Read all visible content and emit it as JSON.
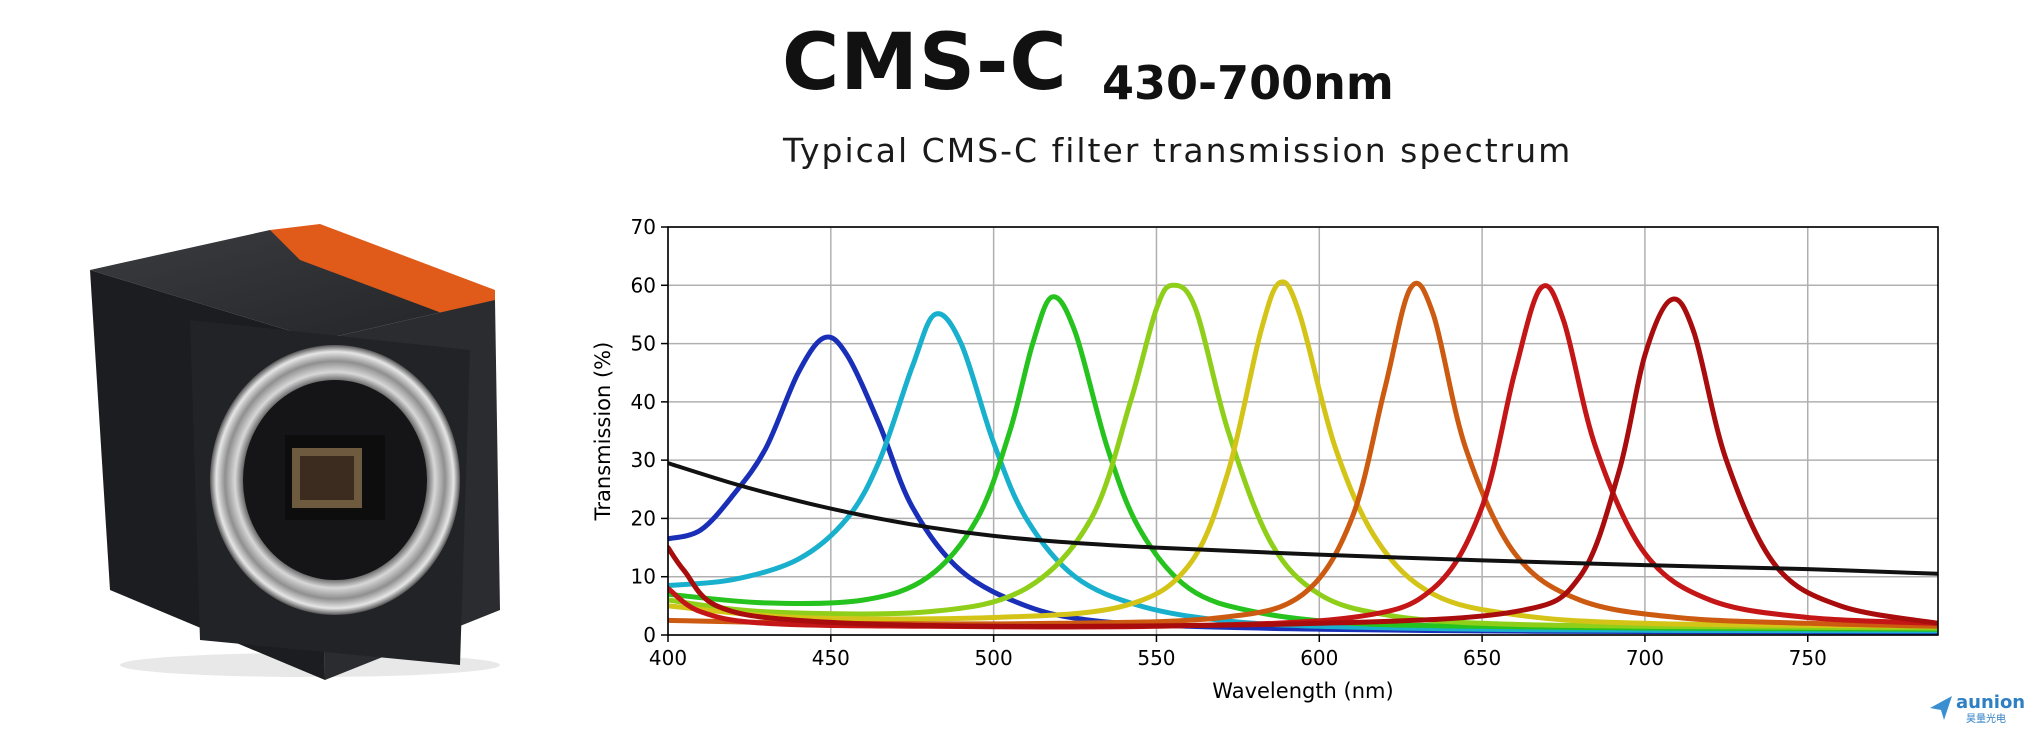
{
  "header": {
    "title": "CMS-C",
    "range": "430-700nm",
    "subtitle": "Typical CMS-C filter transmission spectrum"
  },
  "logo": {
    "text": "aunion",
    "subtext": "昊量光电"
  },
  "chart_data": {
    "type": "line",
    "title": "",
    "xlabel": "Wavelength (nm)",
    "ylabel": "Transmission (%)",
    "xlim": [
      400,
      790
    ],
    "ylim": [
      0,
      70
    ],
    "xticks": [
      400,
      450,
      500,
      550,
      600,
      650,
      700,
      750
    ],
    "yticks": [
      0,
      10,
      20,
      30,
      40,
      50,
      60,
      70
    ],
    "grid": true,
    "series": [
      {
        "color": "#1a2fb8",
        "peak_nm": 448,
        "peak_value": 51,
        "points": [
          [
            400,
            16.5
          ],
          [
            410,
            18
          ],
          [
            420,
            24
          ],
          [
            430,
            32
          ],
          [
            440,
            45
          ],
          [
            448,
            51
          ],
          [
            455,
            48
          ],
          [
            465,
            36
          ],
          [
            475,
            22
          ],
          [
            490,
            11
          ],
          [
            510,
            5
          ],
          [
            530,
            2.5
          ],
          [
            560,
            1.5
          ],
          [
            600,
            1
          ],
          [
            650,
            0.7
          ],
          [
            700,
            0.6
          ],
          [
            790,
            0.5
          ]
        ]
      },
      {
        "color": "#18b0cc",
        "peak_nm": 482,
        "peak_value": 55,
        "points": [
          [
            400,
            8.5
          ],
          [
            420,
            9.5
          ],
          [
            440,
            13
          ],
          [
            455,
            20
          ],
          [
            465,
            30
          ],
          [
            475,
            46
          ],
          [
            482,
            55
          ],
          [
            490,
            50
          ],
          [
            500,
            33
          ],
          [
            510,
            20
          ],
          [
            525,
            10
          ],
          [
            545,
            5
          ],
          [
            570,
            2.5
          ],
          [
            600,
            1.5
          ],
          [
            650,
            1
          ],
          [
            700,
            0.8
          ],
          [
            790,
            0.7
          ]
        ]
      },
      {
        "color": "#26c21e",
        "peak_nm": 518,
        "peak_value": 58,
        "points": [
          [
            400,
            7
          ],
          [
            430,
            5.5
          ],
          [
            460,
            6
          ],
          [
            480,
            10
          ],
          [
            495,
            20
          ],
          [
            505,
            35
          ],
          [
            512,
            50
          ],
          [
            518,
            58
          ],
          [
            525,
            52
          ],
          [
            535,
            32
          ],
          [
            545,
            18
          ],
          [
            560,
            8
          ],
          [
            580,
            4
          ],
          [
            610,
            2
          ],
          [
            650,
            1.5
          ],
          [
            700,
            1.2
          ],
          [
            790,
            1
          ]
        ]
      },
      {
        "color": "#8fcf1a",
        "peak_nm": 555,
        "peak_value": 60,
        "points": [
          [
            400,
            6
          ],
          [
            430,
            4
          ],
          [
            480,
            4
          ],
          [
            510,
            8
          ],
          [
            530,
            20
          ],
          [
            542,
            40
          ],
          [
            550,
            56
          ],
          [
            555,
            60
          ],
          [
            562,
            56
          ],
          [
            572,
            35
          ],
          [
            585,
            16
          ],
          [
            600,
            7
          ],
          [
            620,
            3.5
          ],
          [
            650,
            2
          ],
          [
            700,
            1.5
          ],
          [
            790,
            1.2
          ]
        ]
      },
      {
        "color": "#d4c417",
        "peak_nm": 588,
        "peak_value": 60.5,
        "points": [
          [
            400,
            5
          ],
          [
            440,
            3
          ],
          [
            500,
            3
          ],
          [
            540,
            5
          ],
          [
            560,
            12
          ],
          [
            572,
            28
          ],
          [
            582,
            52
          ],
          [
            588,
            60.5
          ],
          [
            594,
            55
          ],
          [
            605,
            32
          ],
          [
            618,
            16
          ],
          [
            635,
            7
          ],
          [
            660,
            3.5
          ],
          [
            700,
            2
          ],
          [
            790,
            1.5
          ]
        ]
      },
      {
        "color": "#cc5a10",
        "peak_nm": 628,
        "peak_value": 59.5,
        "points": [
          [
            400,
            2.5
          ],
          [
            450,
            2
          ],
          [
            520,
            2
          ],
          [
            570,
            3
          ],
          [
            595,
            7
          ],
          [
            610,
            20
          ],
          [
            620,
            42
          ],
          [
            628,
            59.5
          ],
          [
            635,
            55
          ],
          [
            645,
            32
          ],
          [
            660,
            14
          ],
          [
            680,
            6
          ],
          [
            710,
            3
          ],
          [
            750,
            2
          ],
          [
            790,
            1.5
          ]
        ]
      },
      {
        "color": "#c41616",
        "peak_nm": 668,
        "peak_value": 59.5,
        "points": [
          [
            400,
            8
          ],
          [
            410,
            4
          ],
          [
            430,
            2
          ],
          [
            480,
            1.5
          ],
          [
            550,
            1.5
          ],
          [
            610,
            3
          ],
          [
            635,
            8
          ],
          [
            650,
            22
          ],
          [
            660,
            45
          ],
          [
            668,
            59.5
          ],
          [
            675,
            54
          ],
          [
            685,
            32
          ],
          [
            700,
            14
          ],
          [
            720,
            6
          ],
          [
            750,
            3
          ],
          [
            790,
            2
          ]
        ]
      },
      {
        "color": "#a80c0c",
        "peak_nm": 708,
        "peak_value": 57.5,
        "points": [
          [
            400,
            15
          ],
          [
            405,
            11
          ],
          [
            415,
            5
          ],
          [
            440,
            2.5
          ],
          [
            500,
            1.5
          ],
          [
            600,
            2
          ],
          [
            660,
            4
          ],
          [
            680,
            10
          ],
          [
            692,
            28
          ],
          [
            700,
            48
          ],
          [
            708,
            57.5
          ],
          [
            715,
            52
          ],
          [
            725,
            30
          ],
          [
            740,
            12
          ],
          [
            760,
            5
          ],
          [
            790,
            2
          ]
        ]
      },
      {
        "color": "#111111",
        "peak_nm": null,
        "peak_value": null,
        "points": [
          [
            400,
            29.5
          ],
          [
            420,
            26
          ],
          [
            440,
            23
          ],
          [
            460,
            20.5
          ],
          [
            480,
            18.5
          ],
          [
            500,
            17
          ],
          [
            520,
            16
          ],
          [
            550,
            15
          ],
          [
            600,
            13.8
          ],
          [
            650,
            12.8
          ],
          [
            700,
            12
          ],
          [
            750,
            11.3
          ],
          [
            790,
            10.5
          ]
        ]
      }
    ]
  }
}
